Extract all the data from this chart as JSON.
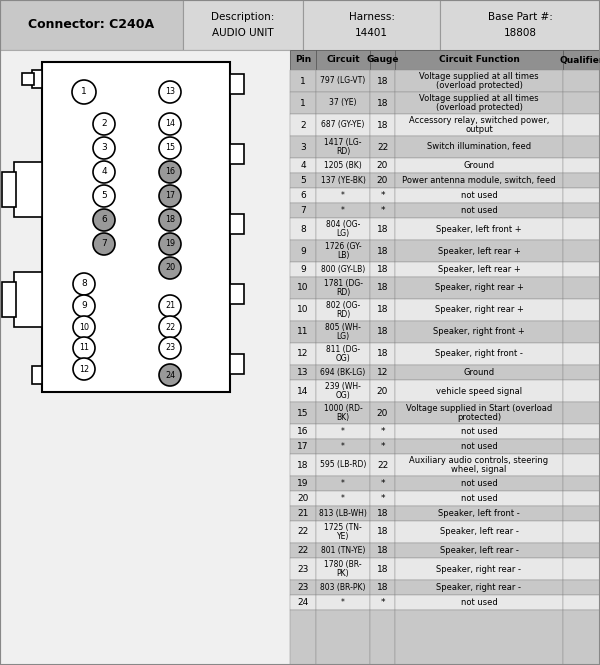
{
  "connector_label": "Connector: C240A",
  "description_label": "Description:",
  "description_val": "AUDIO UNIT",
  "harness_label": "Harness:",
  "harness_val": "14401",
  "basepart_label": "Base Part #:",
  "basepart_val": "18808",
  "col_headers": [
    "Pin",
    "Circuit",
    "Gauge",
    "Circuit Function",
    "Qualifier"
  ],
  "rows": [
    [
      "1",
      "797 (LG-VT)",
      "18",
      "Voltage supplied at all times\n(overload protected)",
      ""
    ],
    [
      "1",
      "37 (YE)",
      "18",
      "Voltage supplied at all times\n(overload protected)",
      ""
    ],
    [
      "2",
      "687 (GY-YE)",
      "18",
      "Accessory relay, switched power,\noutput",
      ""
    ],
    [
      "3",
      "1417 (LG-\nRD)",
      "22",
      "Switch illumination, feed",
      ""
    ],
    [
      "4",
      "1205 (BK)",
      "20",
      "Ground",
      ""
    ],
    [
      "5",
      "137 (YE-BK)",
      "20",
      "Power antenna module, switch, feed",
      ""
    ],
    [
      "6",
      "*",
      "*",
      "not used",
      ""
    ],
    [
      "7",
      "*",
      "*",
      "not used",
      ""
    ],
    [
      "8",
      "804 (OG-\nLG)",
      "18",
      "Speaker, left front +",
      ""
    ],
    [
      "9",
      "1726 (GY-\nLB)",
      "18",
      "Speaker, left rear +",
      ""
    ],
    [
      "9",
      "800 (GY-LB)",
      "18",
      "Speaker, left rear +",
      ""
    ],
    [
      "10",
      "1781 (DG-\nRD)",
      "18",
      "Speaker, right rear +",
      ""
    ],
    [
      "10",
      "802 (OG-\nRD)",
      "18",
      "Speaker, right rear +",
      ""
    ],
    [
      "11",
      "805 (WH-\nLG)",
      "18",
      "Speaker, right front +",
      ""
    ],
    [
      "12",
      "811 (DG-\nOG)",
      "18",
      "Speaker, right front -",
      ""
    ],
    [
      "13",
      "694 (BK-LG)",
      "12",
      "Ground",
      ""
    ],
    [
      "14",
      "239 (WH-\nOG)",
      "20",
      "vehicle speed signal",
      ""
    ],
    [
      "15",
      "1000 (RD-\nBK)",
      "20",
      "Voltage supplied in Start (overload\nprotected)",
      ""
    ],
    [
      "16",
      "*",
      "*",
      "not used",
      ""
    ],
    [
      "17",
      "*",
      "*",
      "not used",
      ""
    ],
    [
      "18",
      "595 (LB-RD)",
      "22",
      "Auxiliary audio controls, steering\nwheel, signal",
      ""
    ],
    [
      "19",
      "*",
      "*",
      "not used",
      ""
    ],
    [
      "20",
      "*",
      "*",
      "not used",
      ""
    ],
    [
      "21",
      "813 (LB-WH)",
      "18",
      "Speaker, left front -",
      ""
    ],
    [
      "22",
      "1725 (TN-\nYE)",
      "18",
      "Speaker, left rear -",
      ""
    ],
    [
      "22",
      "801 (TN-YE)",
      "18",
      "Speaker, left rear -",
      ""
    ],
    [
      "23",
      "1780 (BR-\nPK)",
      "18",
      "Speaker, right rear -",
      ""
    ],
    [
      "23",
      "803 (BR-PK)",
      "18",
      "Speaker, right rear -",
      ""
    ],
    [
      "24",
      "*",
      "*",
      "not used",
      ""
    ]
  ],
  "dark_rows": [
    0,
    1,
    3,
    5,
    7,
    9,
    11,
    13,
    15,
    17,
    19,
    21,
    23,
    25,
    27
  ],
  "gray_pins": [
    6,
    7,
    16,
    17,
    18,
    19,
    20,
    24
  ],
  "header_col1_bg": "#c8c8c8",
  "header_col_bg": "#d8d8d8",
  "table_header_bg": "#909090",
  "row_dark_bg": "#c8c8c8",
  "row_light_bg": "#e8e8e8",
  "outer_bg": "#ffffff",
  "diag_bg": "#f0f0f0"
}
